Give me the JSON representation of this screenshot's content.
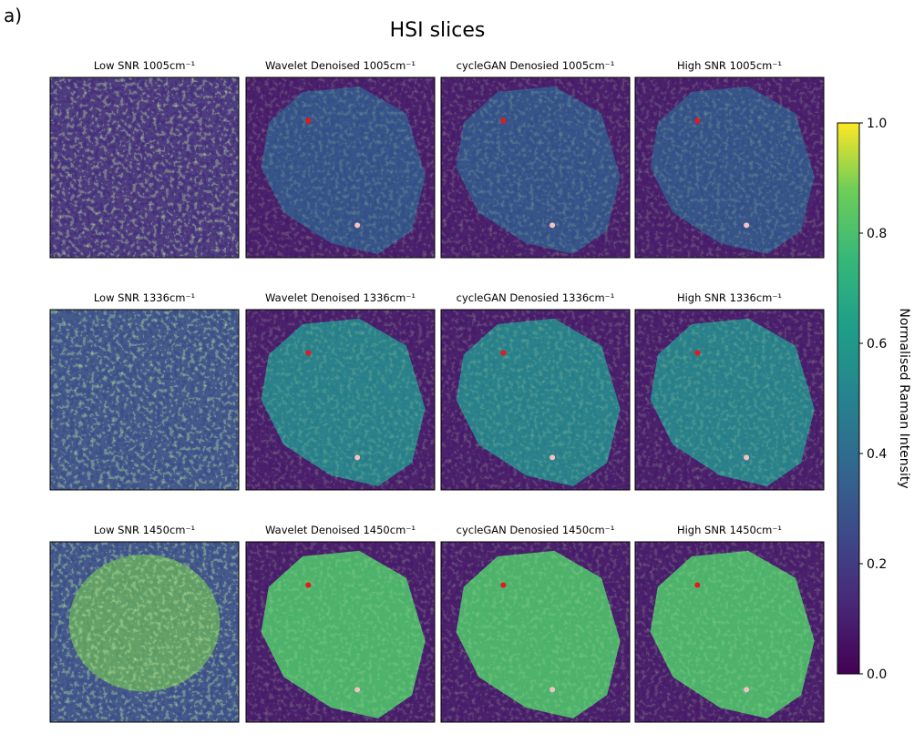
{
  "chart_data": {
    "type": "image_grid",
    "panel_label": "a)",
    "title": "HSI slices",
    "panels": [
      "Low SNR 1005cm⁻¹",
      "Wavelet Denoised 1005cm⁻¹",
      "cycleGAN Denosied 1005cm⁻¹",
      "High SNR 1005cm⁻¹",
      "Low SNR 1336cm⁻¹",
      "Wavelet Denoised 1336cm⁻¹",
      "cycleGAN Denosied 1336cm⁻¹",
      "High SNR 1336cm⁻¹",
      "Low SNR 1450cm⁻¹",
      "Wavelet Denoised 1450cm⁻¹",
      "cycleGAN Denosied 1450cm⁻¹",
      "High SNR 1450cm⁻¹"
    ],
    "colorbar": {
      "label": "Normalised Raman Intensity",
      "ylim": [
        0,
        1
      ],
      "yticks": [
        {
          "value": 0,
          "label": "0.0"
        },
        {
          "value": 0.2,
          "label": "0.2"
        },
        {
          "value": 0.4,
          "label": "0.4"
        },
        {
          "value": 0.6,
          "label": "0.6"
        },
        {
          "value": 0.8,
          "label": "0.8"
        },
        {
          "value": 1,
          "label": "1.0"
        }
      ]
    }
  }
}
